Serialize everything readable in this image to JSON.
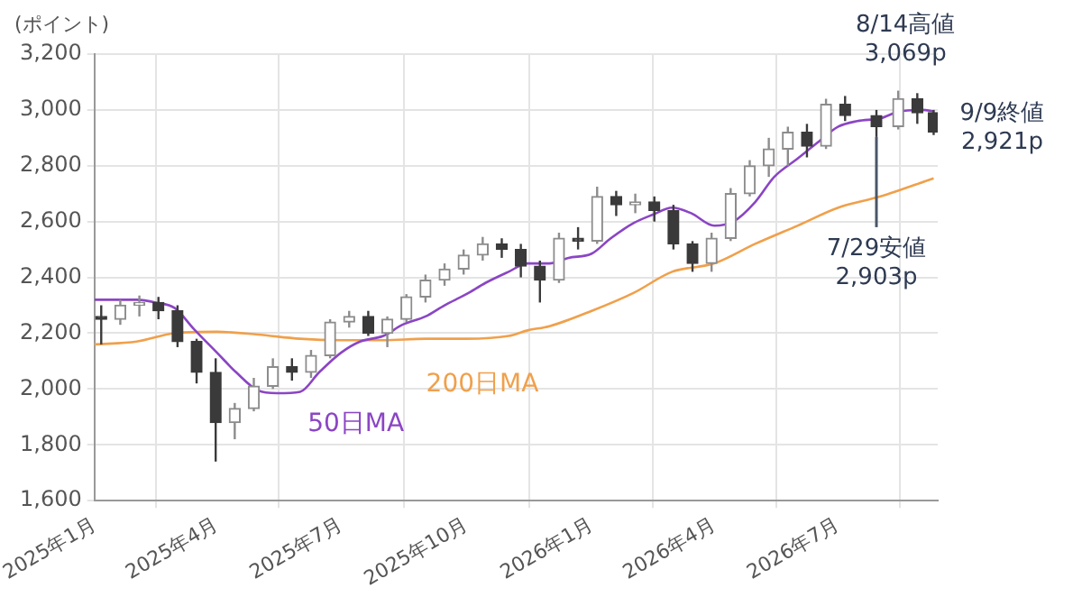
{
  "chart_data": {
    "type": "candlestick",
    "ylabel": "(ポイント)",
    "x": [
      "2025-01-06",
      "2025-01-20",
      "2025-02-03",
      "2025-02-17",
      "2025-03-03",
      "2025-03-17",
      "2025-03-31",
      "2025-04-14",
      "2025-04-28",
      "2025-05-12",
      "2025-05-26",
      "2025-06-09",
      "2025-06-23",
      "2025-07-07",
      "2025-07-21",
      "2025-08-04",
      "2025-08-18",
      "2025-09-01",
      "2025-09-15",
      "2025-09-29",
      "2025-10-13",
      "2025-10-27",
      "2025-11-10",
      "2025-11-24",
      "2025-12-08",
      "2025-12-22",
      "2026-01-05",
      "2026-01-19",
      "2026-02-02",
      "2026-02-16",
      "2026-03-02",
      "2026-03-16",
      "2026-03-30",
      "2026-04-13",
      "2026-04-27",
      "2026-05-11",
      "2026-05-25",
      "2026-06-08",
      "2026-06-22",
      "2026-07-06",
      "2026-07-29",
      "2026-08-14",
      "2026-08-28",
      "2026-09-09"
    ],
    "ohlc": [
      [
        2260,
        2300,
        2160,
        2250
      ],
      [
        2250,
        2320,
        2230,
        2300
      ],
      [
        2300,
        2335,
        2260,
        2310
      ],
      [
        2310,
        2330,
        2250,
        2280
      ],
      [
        2280,
        2300,
        2150,
        2170
      ],
      [
        2170,
        2180,
        2020,
        2060
      ],
      [
        2060,
        2110,
        1740,
        1880
      ],
      [
        1880,
        1950,
        1820,
        1930
      ],
      [
        1930,
        2040,
        1920,
        2010
      ],
      [
        2010,
        2110,
        2000,
        2080
      ],
      [
        2080,
        2110,
        2030,
        2060
      ],
      [
        2060,
        2140,
        2040,
        2120
      ],
      [
        2120,
        2250,
        2110,
        2240
      ],
      [
        2240,
        2280,
        2220,
        2260
      ],
      [
        2260,
        2280,
        2190,
        2200
      ],
      [
        2200,
        2260,
        2150,
        2250
      ],
      [
        2250,
        2340,
        2240,
        2330
      ],
      [
        2330,
        2410,
        2310,
        2390
      ],
      [
        2390,
        2450,
        2370,
        2430
      ],
      [
        2430,
        2500,
        2410,
        2480
      ],
      [
        2480,
        2545,
        2460,
        2520
      ],
      [
        2520,
        2540,
        2470,
        2500
      ],
      [
        2500,
        2520,
        2400,
        2440
      ],
      [
        2440,
        2460,
        2310,
        2390
      ],
      [
        2390,
        2560,
        2380,
        2540
      ],
      [
        2540,
        2580,
        2500,
        2530
      ],
      [
        2530,
        2725,
        2520,
        2690
      ],
      [
        2690,
        2710,
        2620,
        2660
      ],
      [
        2660,
        2700,
        2630,
        2670
      ],
      [
        2670,
        2690,
        2600,
        2640
      ],
      [
        2640,
        2660,
        2500,
        2520
      ],
      [
        2520,
        2530,
        2420,
        2450
      ],
      [
        2450,
        2560,
        2420,
        2540
      ],
      [
        2540,
        2720,
        2530,
        2700
      ],
      [
        2700,
        2820,
        2690,
        2800
      ],
      [
        2800,
        2900,
        2760,
        2860
      ],
      [
        2860,
        2940,
        2800,
        2920
      ],
      [
        2920,
        2950,
        2830,
        2870
      ],
      [
        2870,
        3040,
        2860,
        3020
      ],
      [
        3020,
        3050,
        2960,
        2980
      ],
      [
        2980,
        3000,
        2903,
        2940
      ],
      [
        2940,
        3069,
        2930,
        3040
      ],
      [
        3040,
        3060,
        2950,
        2990
      ],
      [
        2990,
        3000,
        2910,
        2921
      ]
    ],
    "colors": [
      "#3a3a3a",
      "#8c8c8c",
      "#8c8c8c",
      "#3a3a3a",
      "#3a3a3a",
      "#3a3a3a",
      "#3a3a3a",
      "#8c8c8c",
      "#8c8c8c",
      "#8c8c8c",
      "#3a3a3a",
      "#8c8c8c",
      "#8c8c8c",
      "#8c8c8c",
      "#3a3a3a",
      "#8c8c8c",
      "#8c8c8c",
      "#8c8c8c",
      "#8c8c8c",
      "#8c8c8c",
      "#8c8c8c",
      "#3a3a3a",
      "#3a3a3a",
      "#3a3a3a",
      "#8c8c8c",
      "#3a3a3a",
      "#8c8c8c",
      "#3a3a3a",
      "#8c8c8c",
      "#3a3a3a",
      "#3a3a3a",
      "#3a3a3a",
      "#8c8c8c",
      "#8c8c8c",
      "#8c8c8c",
      "#8c8c8c",
      "#8c8c8c",
      "#3a3a3a",
      "#8c8c8c",
      "#3a3a3a",
      "#3a3a3a",
      "#8c8c8c",
      "#3a3a3a",
      "#3a3a3a"
    ],
    "series": [
      {
        "name": "50日MA",
        "type": "line",
        "color": "#8b45c4",
        "x": [
          "2025-01-01",
          "2025-02-01",
          "2025-02-15",
          "2025-03-01",
          "2025-03-15",
          "2025-04-01",
          "2025-04-15",
          "2025-05-01",
          "2025-05-15",
          "2025-06-01",
          "2025-06-15",
          "2025-07-01",
          "2025-07-15",
          "2025-08-01",
          "2025-08-15",
          "2025-09-01",
          "2025-09-15",
          "2025-10-01",
          "2025-10-15",
          "2025-11-01",
          "2025-11-15",
          "2025-12-01",
          "2025-12-15",
          "2026-01-01",
          "2026-01-15",
          "2026-02-01",
          "2026-02-15",
          "2026-03-01",
          "2026-03-15",
          "2026-04-01",
          "2026-04-15",
          "2026-05-01",
          "2026-05-15",
          "2026-06-01",
          "2026-06-15",
          "2026-07-01",
          "2026-07-15",
          "2026-08-01",
          "2026-08-15",
          "2026-09-01",
          "2026-09-09"
        ],
        "values": [
          2320,
          2320,
          2310,
          2290,
          2215,
          2130,
          2060,
          1995,
          1985,
          1990,
          2060,
          2130,
          2170,
          2190,
          2230,
          2260,
          2300,
          2340,
          2380,
          2420,
          2450,
          2450,
          2470,
          2485,
          2540,
          2595,
          2625,
          2650,
          2630,
          2585,
          2600,
          2670,
          2760,
          2825,
          2880,
          2940,
          2960,
          2970,
          2995,
          3000,
          2995
        ]
      },
      {
        "name": "200日MA",
        "type": "line",
        "color": "#f0a04b",
        "x": [
          "2025-01-01",
          "2025-02-01",
          "2025-03-01",
          "2025-04-01",
          "2025-05-01",
          "2025-06-01",
          "2025-07-01",
          "2025-08-01",
          "2025-09-01",
          "2025-10-01",
          "2025-11-01",
          "2025-11-15",
          "2025-12-01",
          "2026-01-01",
          "2026-02-01",
          "2026-03-01",
          "2026-04-01",
          "2026-05-01",
          "2026-06-01",
          "2026-07-01",
          "2026-08-01",
          "2026-09-09"
        ],
        "values": [
          2160,
          2170,
          2200,
          2205,
          2195,
          2180,
          2175,
          2175,
          2180,
          2180,
          2190,
          2210,
          2225,
          2280,
          2345,
          2420,
          2450,
          2520,
          2585,
          2650,
          2690,
          2755
        ]
      }
    ],
    "xlim": [
      "2025-01-01",
      "2026-09-12"
    ],
    "xticks": [
      {
        "value": "2025-01-01",
        "label": "2025年1月"
      },
      {
        "value": "2025-04-01",
        "label": "2025年4月"
      },
      {
        "value": "2025-07-01",
        "label": "2025年7月"
      },
      {
        "value": "2025-10-01",
        "label": "2025年10月"
      },
      {
        "value": "2026-01-01",
        "label": "2026年1月"
      },
      {
        "value": "2026-04-01",
        "label": "2026年4月"
      },
      {
        "value": "2026-07-01",
        "label": "2026年7月"
      }
    ],
    "ylim": [
      1600,
      3200
    ],
    "yticks": [
      {
        "value": 1600,
        "label": "1,600"
      },
      {
        "value": 1800,
        "label": "1,800"
      },
      {
        "value": 2000,
        "label": "2,000"
      },
      {
        "value": 2200,
        "label": "2,200"
      },
      {
        "value": 2400,
        "label": "2,400"
      },
      {
        "value": 2600,
        "label": "2,600"
      },
      {
        "value": 2800,
        "label": "2,800"
      },
      {
        "value": 3000,
        "label": "3,000"
      },
      {
        "value": 3200,
        "label": "3,200"
      }
    ],
    "grid": true,
    "annotations": [
      {
        "text": "8/14高値\n3,069p",
        "x": "2026-08-14",
        "y": 3069
      },
      {
        "text": "7/29安値\n2,903p",
        "x": "2026-07-29",
        "y": 2903
      },
      {
        "text": "9/9終値\n2,921p",
        "x": "2026-09-09",
        "y": 2921
      }
    ]
  }
}
